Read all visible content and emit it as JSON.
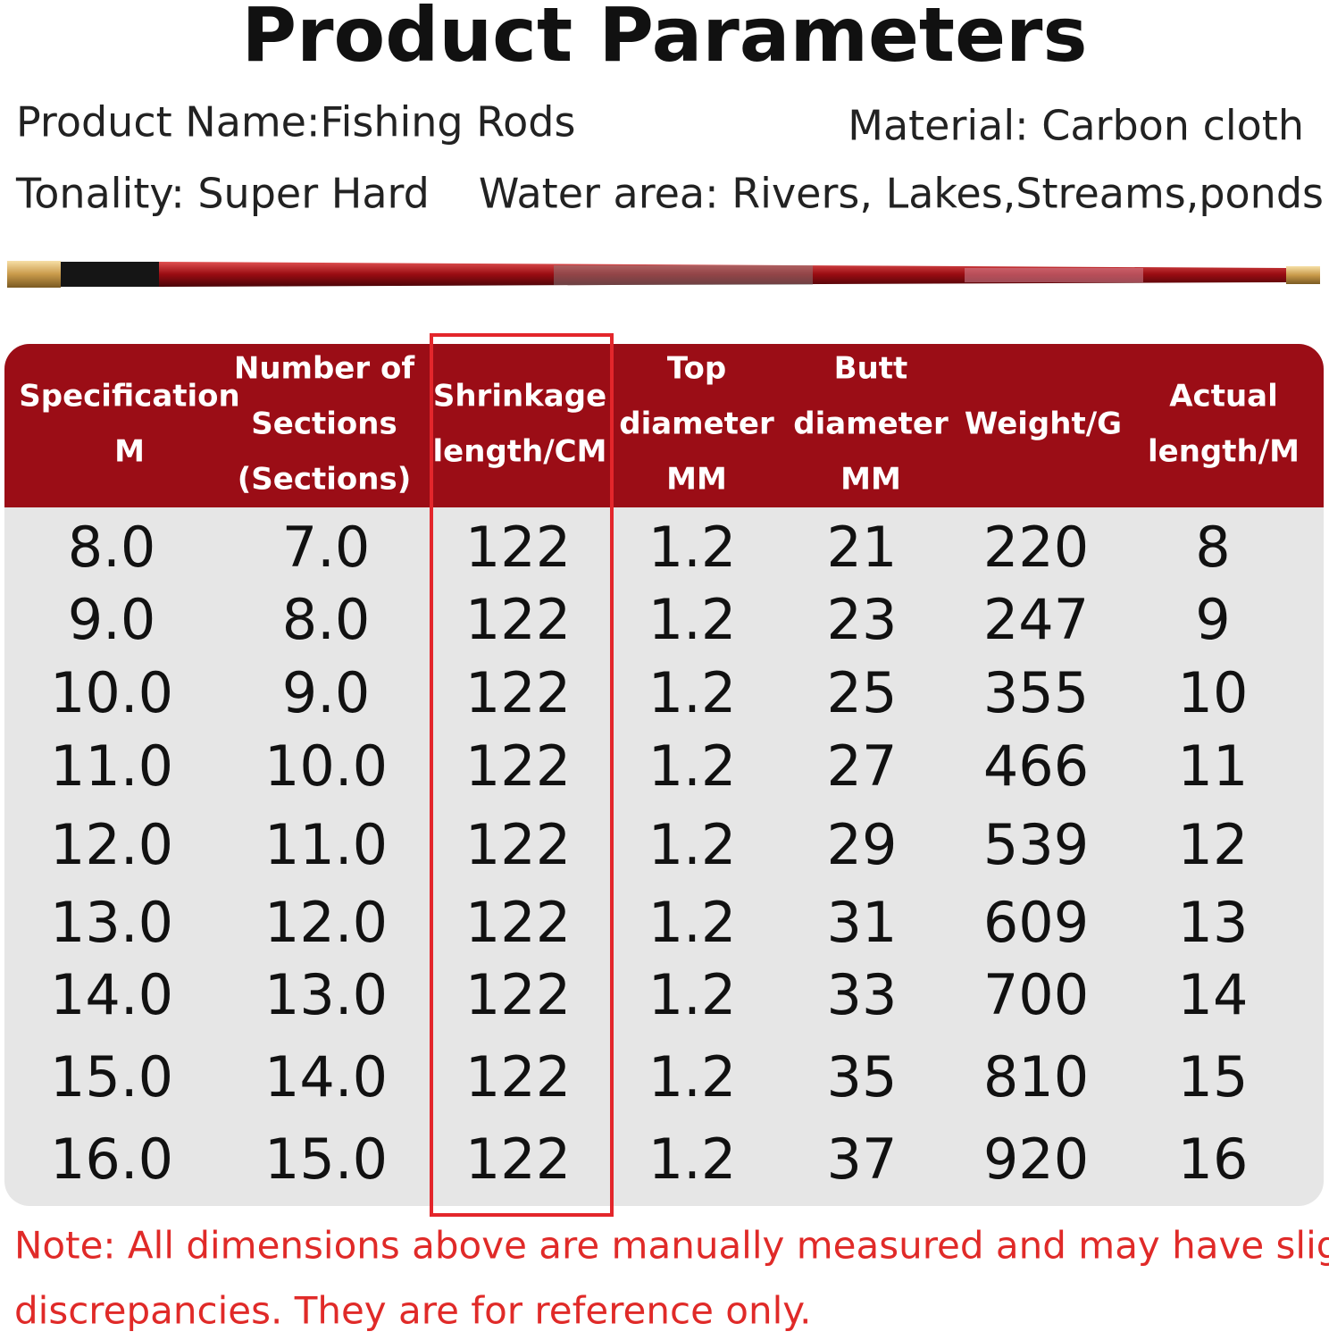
{
  "title": "Product Parameters",
  "info": {
    "product_name": "Product Name:Fishing Rods",
    "material": "Material: Carbon cloth",
    "tonality": "Tonality: Super Hard",
    "water_area": "Water area: Rivers, Lakes,Streams,ponds"
  },
  "table": {
    "headers": [
      [
        "Specification",
        "M"
      ],
      [
        "Number of",
        "Sections",
        "(Sections)"
      ],
      [
        "Shrinkage",
        "length/CM"
      ],
      [
        "Top",
        "diameter",
        "MM"
      ],
      [
        "Butt",
        "diameter",
        "MM"
      ],
      [
        "Weight/G"
      ],
      [
        "Actual",
        "length/M"
      ]
    ],
    "rows": [
      [
        "8.0",
        "7.0",
        "122",
        "1.2",
        "21",
        "220",
        "8"
      ],
      [
        "9.0",
        "8.0",
        "122",
        "1.2",
        "23",
        "247",
        "9"
      ],
      [
        "10.0",
        "9.0",
        "122",
        "1.2",
        "25",
        "355",
        "10"
      ],
      [
        "11.0",
        "10.0",
        "122",
        "1.2",
        "27",
        "466",
        "11"
      ],
      [
        "12.0",
        "11.0",
        "122",
        "1.2",
        "29",
        "539",
        "12"
      ],
      [
        "13.0",
        "12.0",
        "122",
        "1.2",
        "31",
        "609",
        "13"
      ],
      [
        "14.0",
        "13.0",
        "122",
        "1.2",
        "33",
        "700",
        "14"
      ],
      [
        "15.0",
        "14.0",
        "122",
        "1.2",
        "35",
        "810",
        "15"
      ],
      [
        "16.0",
        "15.0",
        "122",
        "1.2",
        "37",
        "920",
        "16"
      ]
    ]
  },
  "note": [
    "Note: All dimensions above are manually measured and may have slight",
    "discrepancies. They are for reference only."
  ]
}
